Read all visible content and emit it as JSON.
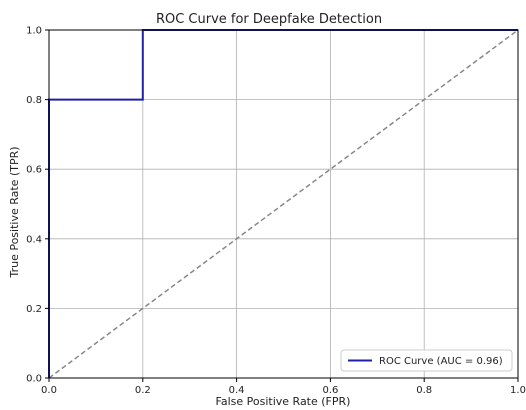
{
  "chart_data": {
    "type": "line",
    "title": "ROC Curve for Deepfake Detection",
    "xlabel": "False Positive Rate (FPR)",
    "ylabel": "True Positive Rate (TPR)",
    "xlim": [
      0,
      1
    ],
    "ylim": [
      0,
      1
    ],
    "grid": true,
    "x_ticks": [
      0.0,
      0.2,
      0.4,
      0.6,
      0.8,
      1.0
    ],
    "y_ticks": [
      0.0,
      0.2,
      0.4,
      0.6,
      0.8,
      1.0
    ],
    "x_tick_labels": [
      "0.0",
      "0.2",
      "0.4",
      "0.6",
      "0.8",
      "1.0"
    ],
    "y_tick_labels": [
      "0.0",
      "0.2",
      "0.4",
      "0.6",
      "0.8",
      "1.0"
    ],
    "legend_position": "bottom-right",
    "series": [
      {
        "name": "ROC Curve (AUC = 0.96)",
        "color": "#1f1fa8",
        "style": "solid",
        "x": [
          0.0,
          0.0,
          0.2,
          0.2,
          1.0
        ],
        "y": [
          0.0,
          0.8,
          0.8,
          1.0,
          1.0
        ]
      },
      {
        "color": "#888888",
        "style": "dashed",
        "x": [
          0.0,
          1.0
        ],
        "y": [
          0.0,
          1.0
        ]
      }
    ]
  }
}
